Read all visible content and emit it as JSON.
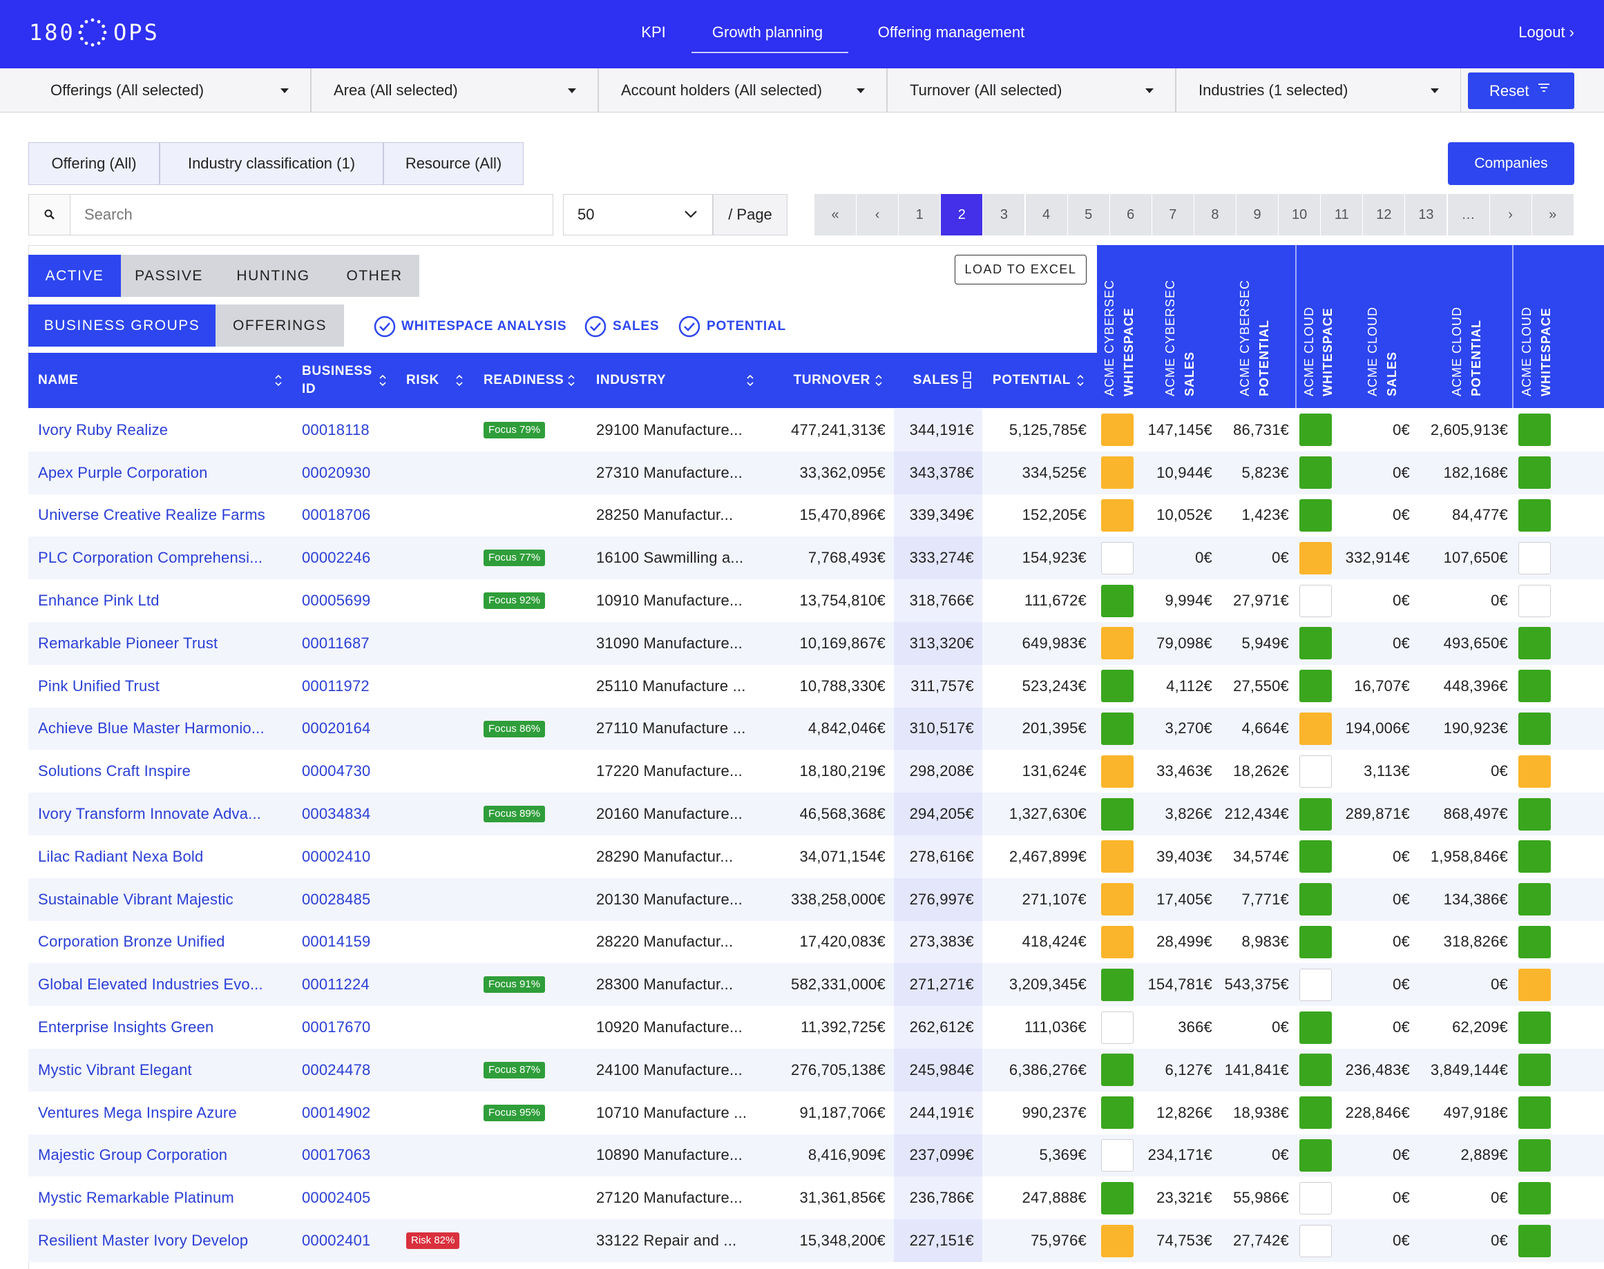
{
  "nav": {
    "logo": [
      "180",
      "OPS"
    ],
    "links": [
      "KPI",
      "Growth planning",
      "Offering management"
    ],
    "logout": "Logout ›"
  },
  "filters": [
    "Offerings (All selected)",
    "Area (All selected)",
    "Account holders (All selected)",
    "Turnover (All selected)",
    "Industries (1 selected)"
  ],
  "reset": "Reset",
  "tabs": [
    "Offering (All)",
    "Industry classification (1)",
    "Resource (All)"
  ],
  "companies": "Companies",
  "search": "Search",
  "page_size": "50",
  "per_page": "/ Page",
  "pagination": [
    "«",
    "‹",
    "1",
    "2",
    "3",
    "4",
    "5",
    "6",
    "7",
    "8",
    "9",
    "10",
    "11",
    "12",
    "13",
    "…",
    "›",
    "»"
  ],
  "status_tabs": [
    "ACTIVE",
    "PASSIVE",
    "HUNTING",
    "OTHER"
  ],
  "view_tabs": [
    "BUSINESS GROUPS",
    "OFFERINGS"
  ],
  "toggles": [
    "WHITESPACE ANALYSIS",
    "SALES",
    "POTENTIAL"
  ],
  "load_excel": "LOAD TO EXCEL",
  "columns": [
    "NAME",
    "BUSINESS ID",
    "RISK",
    "READINESS",
    "INDUSTRY",
    "TURNOVER",
    "SALES",
    "POTENTIAL"
  ],
  "offering_columns": [
    [
      "ACME CYBERSEC",
      "WHITESPACE"
    ],
    [
      "ACME CYBERSEC",
      "SALES"
    ],
    [
      "ACME CYBERSEC",
      "POTENTIAL"
    ],
    [
      "ACME CLOUD",
      "WHITESPACE"
    ],
    [
      "ACME CLOUD",
      "SALES"
    ],
    [
      "ACME CLOUD",
      "POTENTIAL"
    ],
    [
      "ACME CLOUD",
      "WHITESPACE"
    ]
  ],
  "rows": [
    {
      "name": "Ivory Ruby Realize",
      "id": "00018118",
      "readiness": "Focus 79%",
      "industry": "29100 Manufacture...",
      "turnover": "477,241,313€",
      "sales": "344,191€",
      "potential": "5,125,785€",
      "cells": [
        "orange",
        "147,145€",
        "86,731€",
        "green",
        "0€",
        "2,605,913€",
        "green"
      ]
    },
    {
      "name": "Apex Purple Corporation",
      "id": "00020930",
      "industry": "27310 Manufacture...",
      "turnover": "33,362,095€",
      "sales": "343,378€",
      "potential": "334,525€",
      "cells": [
        "orange",
        "10,944€",
        "5,823€",
        "green",
        "0€",
        "182,168€",
        "green"
      ]
    },
    {
      "name": "Universe Creative Realize Farms",
      "id": "00018706",
      "industry": "28250 Manufactur...",
      "turnover": "15,470,896€",
      "sales": "339,349€",
      "potential": "152,205€",
      "cells": [
        "orange",
        "10,052€",
        "1,423€",
        "green",
        "0€",
        "84,477€",
        "green"
      ]
    },
    {
      "name": "PLC Corporation Comprehensi...",
      "id": "00002246",
      "readiness": "Focus 77%",
      "industry": "16100 Sawmilling a...",
      "turnover": "7,768,493€",
      "sales": "333,274€",
      "potential": "154,923€",
      "cells": [
        "white",
        "0€",
        "0€",
        "orange",
        "332,914€",
        "107,650€",
        "white"
      ]
    },
    {
      "name": "Enhance Pink Ltd",
      "id": "00005699",
      "readiness": "Focus 92%",
      "industry": "10910 Manufacture...",
      "turnover": "13,754,810€",
      "sales": "318,766€",
      "potential": "111,672€",
      "cells": [
        "green",
        "9,994€",
        "27,971€",
        "white",
        "0€",
        "0€",
        "white"
      ]
    },
    {
      "name": "Remarkable Pioneer Trust",
      "id": "00011687",
      "industry": "31090 Manufacture...",
      "turnover": "10,169,867€",
      "sales": "313,320€",
      "potential": "649,983€",
      "cells": [
        "orange",
        "79,098€",
        "5,949€",
        "green",
        "0€",
        "493,650€",
        "green"
      ]
    },
    {
      "name": "Pink Unified Trust",
      "id": "00011972",
      "industry": "25110 Manufacture ...",
      "turnover": "10,788,330€",
      "sales": "311,757€",
      "potential": "523,243€",
      "cells": [
        "green",
        "4,112€",
        "27,550€",
        "green",
        "16,707€",
        "448,396€",
        "green"
      ]
    },
    {
      "name": "Achieve Blue Master Harmonio...",
      "id": "00020164",
      "readiness": "Focus 86%",
      "industry": "27110 Manufacture ...",
      "turnover": "4,842,046€",
      "sales": "310,517€",
      "potential": "201,395€",
      "cells": [
        "green",
        "3,270€",
        "4,664€",
        "orange",
        "194,006€",
        "190,923€",
        "green"
      ]
    },
    {
      "name": "Solutions Craft Inspire",
      "id": "00004730",
      "industry": "17220 Manufacture...",
      "turnover": "18,180,219€",
      "sales": "298,208€",
      "potential": "131,624€",
      "cells": [
        "orange",
        "33,463€",
        "18,262€",
        "white",
        "3,113€",
        "0€",
        "orange"
      ]
    },
    {
      "name": "Ivory Transform Innovate Adva...",
      "id": "00034834",
      "readiness": "Focus 89%",
      "industry": "20160 Manufacture...",
      "turnover": "46,568,368€",
      "sales": "294,205€",
      "potential": "1,327,630€",
      "cells": [
        "green",
        "3,826€",
        "212,434€",
        "green",
        "289,871€",
        "868,497€",
        "green"
      ]
    },
    {
      "name": "Lilac Radiant Nexa Bold",
      "id": "00002410",
      "industry": "28290 Manufactur...",
      "turnover": "34,071,154€",
      "sales": "278,616€",
      "potential": "2,467,899€",
      "cells": [
        "orange",
        "39,403€",
        "34,574€",
        "green",
        "0€",
        "1,958,846€",
        "green"
      ]
    },
    {
      "name": "Sustainable Vibrant Majestic",
      "id": "00028485",
      "industry": "20130 Manufacture...",
      "turnover": "338,258,000€",
      "sales": "276,997€",
      "potential": "271,107€",
      "cells": [
        "orange",
        "17,405€",
        "7,771€",
        "green",
        "0€",
        "134,386€",
        "green"
      ]
    },
    {
      "name": "Corporation Bronze Unified",
      "id": "00014159",
      "industry": "28220 Manufactur...",
      "turnover": "17,420,083€",
      "sales": "273,383€",
      "potential": "418,424€",
      "cells": [
        "orange",
        "28,499€",
        "8,983€",
        "green",
        "0€",
        "318,826€",
        "green"
      ]
    },
    {
      "name": "Global Elevated Industries Evo...",
      "id": "00011224",
      "readiness": "Focus 91%",
      "industry": "28300 Manufactur...",
      "turnover": "582,331,000€",
      "sales": "271,271€",
      "potential": "3,209,345€",
      "cells": [
        "green",
        "154,781€",
        "543,375€",
        "white",
        "0€",
        "0€",
        "orange"
      ]
    },
    {
      "name": "Enterprise Insights Green",
      "id": "00017670",
      "industry": "10920 Manufacture...",
      "turnover": "11,392,725€",
      "sales": "262,612€",
      "potential": "111,036€",
      "cells": [
        "white",
        "366€",
        "0€",
        "green",
        "0€",
        "62,209€",
        "green"
      ]
    },
    {
      "name": "Mystic Vibrant Elegant",
      "id": "00024478",
      "readiness": "Focus 87%",
      "industry": "24100 Manufacture...",
      "turnover": "276,705,138€",
      "sales": "245,984€",
      "potential": "6,386,276€",
      "cells": [
        "green",
        "6,127€",
        "141,841€",
        "green",
        "236,483€",
        "3,849,144€",
        "green"
      ]
    },
    {
      "name": "Ventures Mega Inspire Azure",
      "id": "00014902",
      "readiness": "Focus 95%",
      "industry": "10710 Manufacture ...",
      "turnover": "91,187,706€",
      "sales": "244,191€",
      "potential": "990,237€",
      "cells": [
        "green",
        "12,826€",
        "18,938€",
        "green",
        "228,846€",
        "497,918€",
        "green"
      ]
    },
    {
      "name": "Majestic Group Corporation",
      "id": "00017063",
      "industry": "10890 Manufacture...",
      "turnover": "8,416,909€",
      "sales": "237,099€",
      "potential": "5,369€",
      "cells": [
        "white",
        "234,171€",
        "0€",
        "green",
        "0€",
        "2,889€",
        "green"
      ]
    },
    {
      "name": "Mystic Remarkable Platinum",
      "id": "00002405",
      "industry": "27120 Manufacture...",
      "turnover": "31,361,856€",
      "sales": "236,786€",
      "potential": "247,888€",
      "cells": [
        "green",
        "23,321€",
        "55,986€",
        "white",
        "0€",
        "0€",
        "green"
      ]
    },
    {
      "name": "Resilient Master Ivory Develop",
      "id": "00002401",
      "risk": "Risk 82%",
      "industry": "33122 Repair and ...",
      "turnover": "15,348,200€",
      "sales": "227,151€",
      "potential": "75,976€",
      "cells": [
        "orange",
        "74,753€",
        "27,742€",
        "white",
        "0€",
        "0€",
        "green"
      ]
    }
  ]
}
